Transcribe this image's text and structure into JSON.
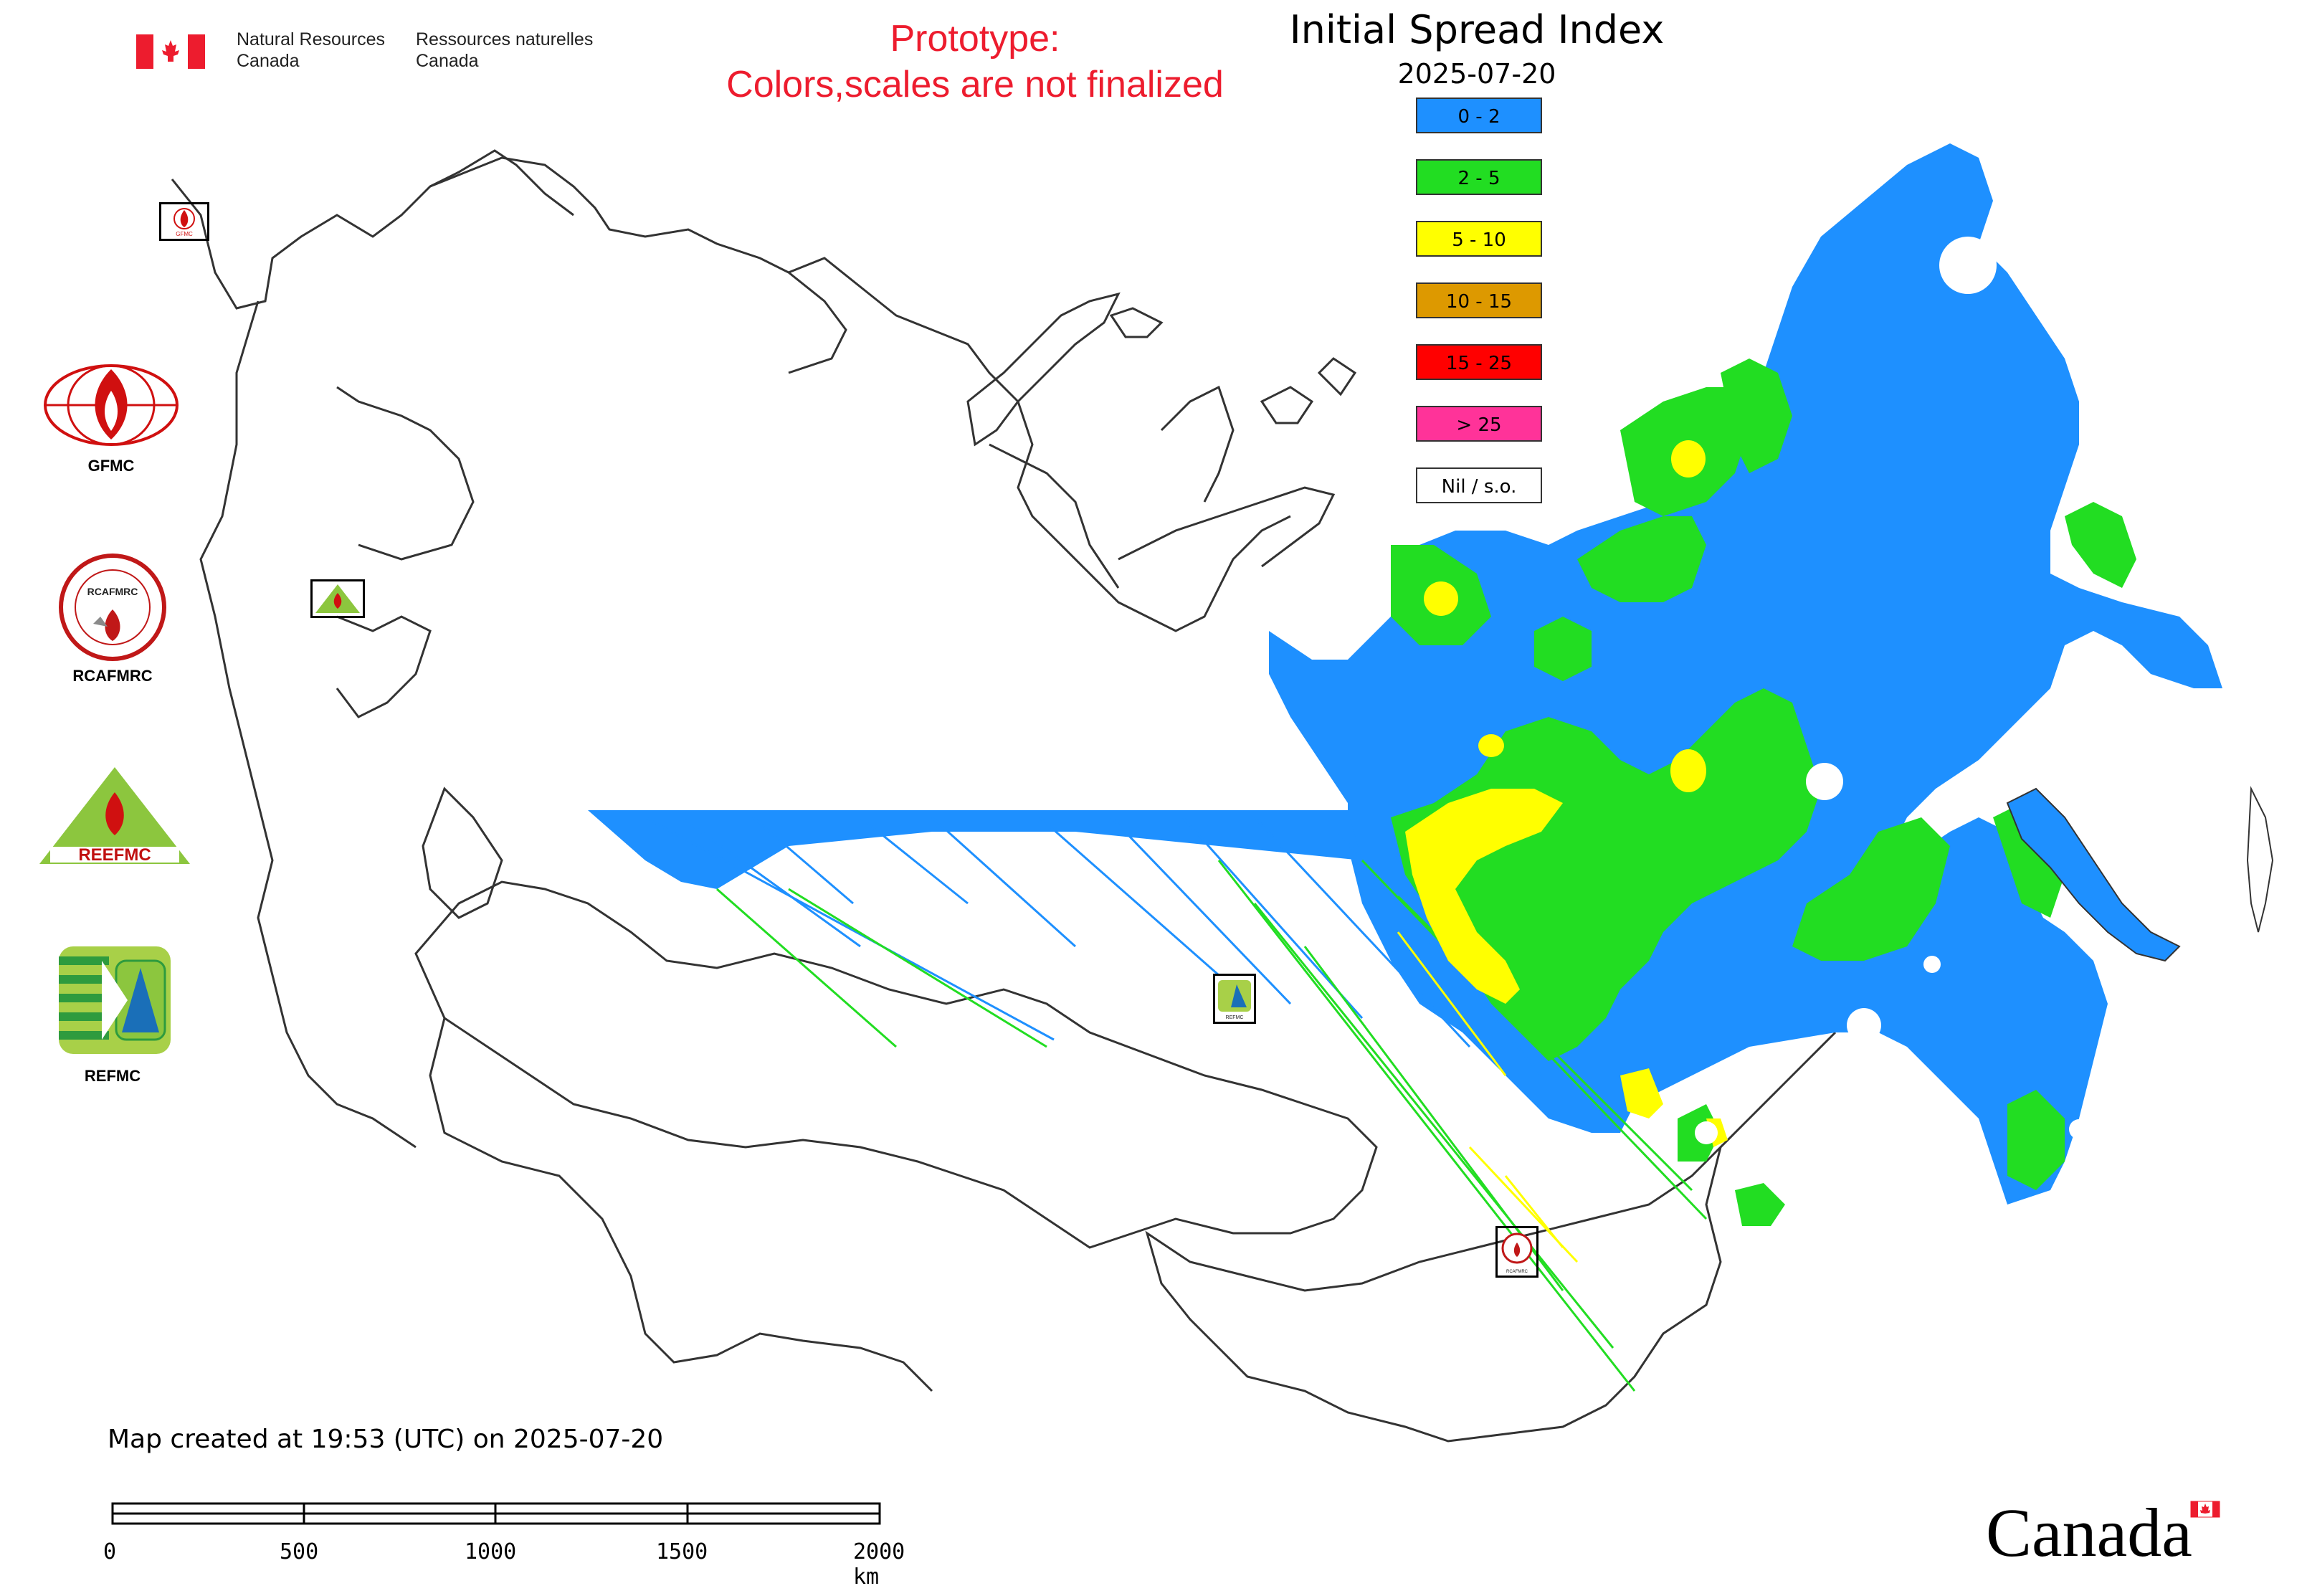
{
  "header": {
    "gov_en": [
      "Natural Resources",
      "Canada"
    ],
    "gov_fr": [
      "Ressources naturelles",
      "Canada"
    ],
    "prototype_line1": "Prototype:",
    "prototype_line2": "Colors,scales are not finalized",
    "title": "Initial Spread Index",
    "date": "2025-07-20"
  },
  "legend": {
    "items": [
      {
        "label": "0 - 2",
        "color": "#1e90ff"
      },
      {
        "label": "2 - 5",
        "color": "#22dd22"
      },
      {
        "label": "5 - 10",
        "color": "#ffff00"
      },
      {
        "label": "10 - 15",
        "color": "#dd9900"
      },
      {
        "label": "15 - 25",
        "color": "#ff0000"
      },
      {
        "label": "> 25",
        "color": "#ff3399"
      },
      {
        "label": "Nil / s.o.",
        "color": "#ffffff"
      }
    ]
  },
  "logos": {
    "gfmc": "GFMC",
    "rcafmrc": "RCAFMRC",
    "reefmc": "REEFMC",
    "refmc": "REFMC",
    "reefmc_wordmark": "REEFMC",
    "rcafmrc_wordmark": "RCAFMRC"
  },
  "footer": {
    "created": "Map created at 19:53 (UTC) on 2025-07-20",
    "scale_ticks": [
      "0",
      "500",
      "1000",
      "1500",
      "2000 km"
    ]
  },
  "wordmark": "Canada",
  "colors": {
    "red": "#ed1c2e",
    "blue": "#1e90ff",
    "green": "#22dd22",
    "yellow": "#ffff00"
  }
}
